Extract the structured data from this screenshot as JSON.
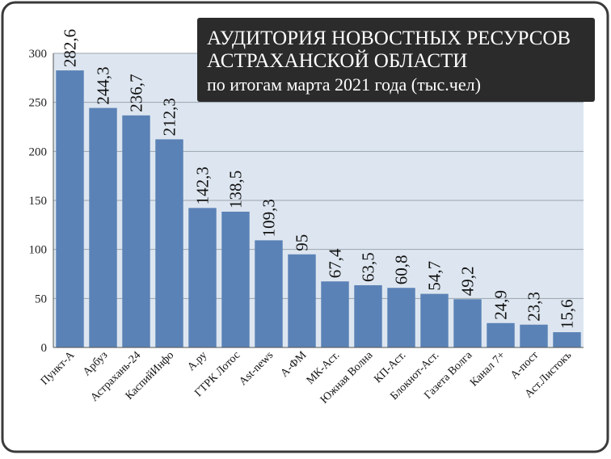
{
  "chart_data": {
    "type": "bar",
    "title_line1": "АУДИТОРИЯ НОВОСТНЫХ РЕСУРСОВ",
    "title_line2": "АСТРАХАНСКОЙ ОБЛАСТИ",
    "subtitle": "по итогам марта 2021 года (тыс.чел)",
    "categories": [
      "Пункт-А",
      "Арбуз",
      "Астрахань-24",
      "КаспийИнфо",
      "А.ру",
      "ГТРК Лотос",
      "Ast-news",
      "А-ФМ",
      "МК-Аст.",
      "Южная Волна",
      "КП-Аст.",
      "Блокнот-Аст.",
      "Газета Волга",
      "Канал 7+",
      "А-пост",
      "Аст.Листокъ"
    ],
    "values": [
      282.6,
      244.3,
      236.7,
      212.3,
      142.3,
      138.5,
      109.3,
      95,
      67.4,
      63.5,
      60.8,
      54.7,
      49.2,
      24.9,
      23.3,
      15.6
    ],
    "value_labels": [
      "282,6",
      "244,3",
      "236,7",
      "212,3",
      "142,3",
      "138,5",
      "109,3",
      "95",
      "67,4",
      "63,5",
      "60,8",
      "54,7",
      "49,2",
      "24,9",
      "23,3",
      "15,6"
    ],
    "yticks": [
      "0",
      "50",
      "100",
      "150",
      "200",
      "250",
      "300"
    ],
    "ylim": [
      0,
      300
    ],
    "grid": true,
    "xlabel": "",
    "ylabel": "",
    "colors": {
      "bar": "#5b82b6",
      "plot_bg": "#dde6f0",
      "grid": "#9aa3ad",
      "frame_border": "#3a3a3a",
      "title_bg": "#2b2b2b",
      "title_text": "#ffffff"
    }
  }
}
